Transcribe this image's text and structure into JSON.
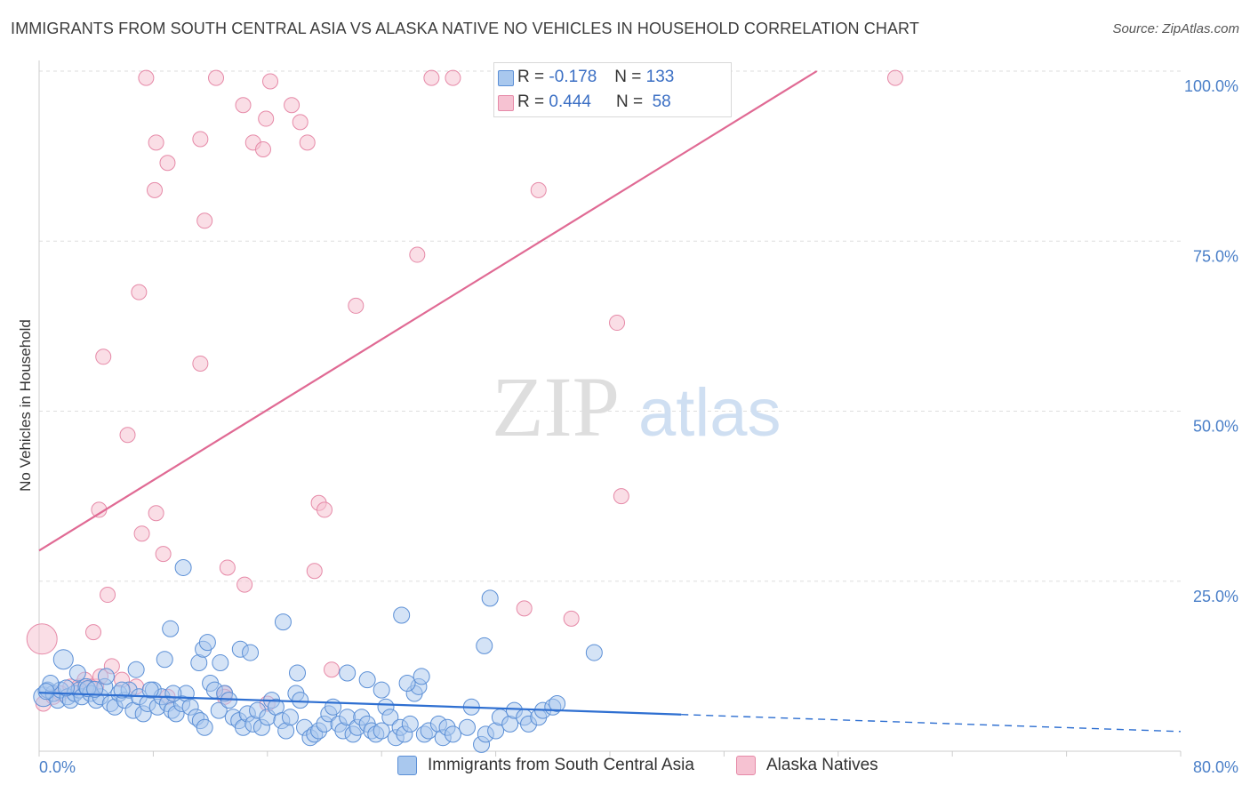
{
  "header": {
    "title": "IMMIGRANTS FROM SOUTH CENTRAL ASIA VS ALASKA NATIVE NO VEHICLES IN HOUSEHOLD CORRELATION CHART",
    "source": "Source: ZipAtlas.com"
  },
  "watermark": {
    "zip": "ZIP",
    "atlas": "atlas"
  },
  "colors": {
    "blue_fill": "#a9c8ee",
    "blue_stroke": "#5b8fd6",
    "blue_line": "#2e6fd1",
    "pink_fill": "#f6c2d2",
    "pink_stroke": "#e68aa8",
    "pink_line": "#e06a94",
    "tick_text": "#4a7fc8",
    "grid": "#dddddd"
  },
  "legend": {
    "rows": [
      {
        "r_label": "R = ",
        "r_value": "-0.178",
        "n_label": "N = ",
        "n_value": "133"
      },
      {
        "r_label": "R = ",
        "r_value": "0.444",
        "n_label": "N = ",
        "n_value": "58"
      }
    ]
  },
  "chart_data": {
    "type": "scatter",
    "title": "IMMIGRANTS FROM SOUTH CENTRAL ASIA VS ALASKA NATIVE NO VEHICLES IN HOUSEHOLD CORRELATION CHART",
    "xlabel": "",
    "ylabel": "No Vehicles in Household",
    "xlim": [
      0,
      80
    ],
    "ylim": [
      0,
      100
    ],
    "x_tick_labels": [
      "0.0%",
      "80.0%"
    ],
    "y_tick_labels": [
      "100.0%",
      "75.0%",
      "50.0%",
      "25.0%"
    ],
    "y_ticks": [
      100,
      75,
      50,
      25
    ],
    "grid": true,
    "legend_position": "top-center",
    "series": [
      {
        "name": "Immigrants from South Central Asia",
        "color": "blue",
        "r": -0.178,
        "n": 133,
        "trend": {
          "x0": 0,
          "y0": 8.6,
          "x1": 80,
          "y1": 2.9,
          "solid_until_x": 45
        },
        "points": [
          [
            0.3,
            8
          ],
          [
            0.6,
            9
          ],
          [
            1,
            8.5
          ],
          [
            1.3,
            7.5
          ],
          [
            1.5,
            9
          ],
          [
            2,
            8
          ],
          [
            2.2,
            7.5
          ],
          [
            2.5,
            8.5
          ],
          [
            2.8,
            9
          ],
          [
            3,
            8
          ],
          [
            3.3,
            9.5
          ],
          [
            3.6,
            8.5
          ],
          [
            4,
            7.5
          ],
          [
            4.3,
            8
          ],
          [
            4.6,
            9.5
          ],
          [
            5,
            7
          ],
          [
            5.3,
            6.5
          ],
          [
            5.6,
            8.5
          ],
          [
            6,
            7.5
          ],
          [
            6.3,
            9
          ],
          [
            6.6,
            6
          ],
          [
            7,
            8
          ],
          [
            7.3,
            5.5
          ],
          [
            7.6,
            7
          ],
          [
            8,
            9
          ],
          [
            8.3,
            6.5
          ],
          [
            8.6,
            8
          ],
          [
            9,
            7
          ],
          [
            9.3,
            6
          ],
          [
            9.6,
            5.5
          ],
          [
            10,
            7
          ],
          [
            10.3,
            8.5
          ],
          [
            10.6,
            6.5
          ],
          [
            11,
            5
          ],
          [
            11.3,
            4.5
          ],
          [
            11.6,
            3.5
          ],
          [
            12,
            10
          ],
          [
            12.3,
            9
          ],
          [
            12.6,
            6
          ],
          [
            13,
            8.5
          ],
          [
            13.3,
            7.5
          ],
          [
            13.6,
            5
          ],
          [
            14,
            4.5
          ],
          [
            14.3,
            3.5
          ],
          [
            14.6,
            5.5
          ],
          [
            15,
            4
          ],
          [
            15.3,
            6
          ],
          [
            15.6,
            3.5
          ],
          [
            16,
            5
          ],
          [
            16.3,
            7.5
          ],
          [
            16.6,
            6.5
          ],
          [
            17,
            4.5
          ],
          [
            17.3,
            3
          ],
          [
            17.6,
            5
          ],
          [
            18,
            8.5
          ],
          [
            18.3,
            7.5
          ],
          [
            18.6,
            3.5
          ],
          [
            19,
            2
          ],
          [
            19.3,
            2.5
          ],
          [
            19.6,
            3
          ],
          [
            20,
            4
          ],
          [
            20.3,
            5.5
          ],
          [
            20.6,
            6.5
          ],
          [
            21,
            4
          ],
          [
            21.3,
            3
          ],
          [
            21.6,
            5
          ],
          [
            22,
            2.5
          ],
          [
            22.3,
            3.5
          ],
          [
            22.6,
            5
          ],
          [
            23,
            4
          ],
          [
            23.3,
            3
          ],
          [
            23.6,
            2.5
          ],
          [
            24,
            3
          ],
          [
            24.3,
            6.5
          ],
          [
            24.6,
            5
          ],
          [
            25,
            2
          ],
          [
            25.3,
            3.5
          ],
          [
            25.6,
            2.5
          ],
          [
            26,
            4
          ],
          [
            26.3,
            8.5
          ],
          [
            26.6,
            9.5
          ],
          [
            27,
            2.5
          ],
          [
            27.3,
            3
          ],
          [
            28,
            4
          ],
          [
            28.3,
            2
          ],
          [
            28.6,
            3.5
          ],
          [
            29,
            2.5
          ],
          [
            30,
            3.5
          ],
          [
            30.3,
            6.5
          ],
          [
            31,
            1
          ],
          [
            31.3,
            2.5
          ],
          [
            32,
            3
          ],
          [
            32.3,
            5
          ],
          [
            33,
            4
          ],
          [
            33.3,
            6
          ],
          [
            34,
            5
          ],
          [
            34.3,
            4
          ],
          [
            35,
            5
          ],
          [
            35.3,
            6
          ],
          [
            36,
            6.5
          ],
          [
            36.3,
            7
          ],
          [
            0.8,
            10
          ],
          [
            1.7,
            13.5
          ],
          [
            2.7,
            11.5
          ],
          [
            4.7,
            11
          ],
          [
            6.8,
            12
          ],
          [
            8.8,
            13.5
          ],
          [
            9.2,
            18
          ],
          [
            10.1,
            27
          ],
          [
            11.2,
            13
          ],
          [
            11.5,
            15
          ],
          [
            11.8,
            16
          ],
          [
            12.7,
            13
          ],
          [
            14.1,
            15
          ],
          [
            14.8,
            14.5
          ],
          [
            17.1,
            19
          ],
          [
            18.1,
            11.5
          ],
          [
            21.6,
            11.5
          ],
          [
            23,
            10.5
          ],
          [
            24,
            9
          ],
          [
            25.4,
            20
          ],
          [
            25.8,
            10
          ],
          [
            26.8,
            11
          ],
          [
            31.2,
            15.5
          ],
          [
            31.6,
            22.5
          ],
          [
            38.9,
            14.5
          ],
          [
            5.8,
            9
          ],
          [
            7.8,
            9
          ],
          [
            9.4,
            8.5
          ],
          [
            3.4,
            9.2
          ],
          [
            1.9,
            9.3
          ],
          [
            0.5,
            8.8
          ],
          [
            3.9,
            9.1
          ]
        ]
      },
      {
        "name": "Alaska Natives",
        "color": "pink",
        "r": 0.444,
        "n": 58,
        "trend": {
          "x0": 0,
          "y0": 29.5,
          "x1": 54.5,
          "y1": 100
        },
        "points": [
          [
            0.2,
            16.5
          ],
          [
            0.3,
            7
          ],
          [
            1,
            8
          ],
          [
            1.5,
            8.5
          ],
          [
            2.2,
            9.5
          ],
          [
            2.8,
            9.5
          ],
          [
            3.2,
            10.5
          ],
          [
            3.6,
            9.5
          ],
          [
            4,
            9.5
          ],
          [
            4.3,
            11
          ],
          [
            5.1,
            12.5
          ],
          [
            5.8,
            10.5
          ],
          [
            6.8,
            9.5
          ],
          [
            4.8,
            23
          ],
          [
            3.8,
            17.5
          ],
          [
            4.2,
            35.5
          ],
          [
            7,
            67.5
          ],
          [
            6.2,
            46.5
          ],
          [
            4.5,
            58
          ],
          [
            7.2,
            32
          ],
          [
            8.7,
            29
          ],
          [
            8.2,
            35
          ],
          [
            8.1,
            82.5
          ],
          [
            8.2,
            89.5
          ],
          [
            9,
            86.5
          ],
          [
            11.3,
            57
          ],
          [
            11.6,
            78
          ],
          [
            11.3,
            90
          ],
          [
            12.4,
            99
          ],
          [
            7.5,
            99
          ],
          [
            14.3,
            95
          ],
          [
            15,
            89.5
          ],
          [
            15.7,
            88.5
          ],
          [
            15.9,
            93
          ],
          [
            16.2,
            98.5
          ],
          [
            17.7,
            95
          ],
          [
            18.3,
            92.5
          ],
          [
            18.8,
            89.5
          ],
          [
            19.3,
            26.5
          ],
          [
            19.6,
            36.5
          ],
          [
            20,
            35.5
          ],
          [
            20.5,
            12
          ],
          [
            13.2,
            27
          ],
          [
            14.4,
            24.5
          ],
          [
            13,
            8.5
          ],
          [
            16,
            7
          ],
          [
            22.2,
            65.5
          ],
          [
            26.5,
            73
          ],
          [
            27.5,
            99
          ],
          [
            29,
            99
          ],
          [
            34,
            21
          ],
          [
            35,
            82.5
          ],
          [
            37.3,
            19.5
          ],
          [
            40.5,
            63
          ],
          [
            40.8,
            37.5
          ],
          [
            60,
            99
          ],
          [
            13,
            8
          ],
          [
            9,
            8
          ]
        ]
      }
    ]
  },
  "bottom_legend": {
    "items": [
      {
        "label": "Immigrants from South Central Asia"
      },
      {
        "label": "Alaska Natives"
      }
    ]
  }
}
